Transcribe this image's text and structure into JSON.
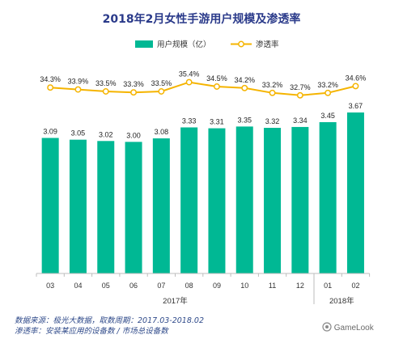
{
  "chart_data": {
    "type": "bar+line",
    "title": "2018年2月女性手游用户规模及渗透率",
    "categories": [
      "03",
      "04",
      "05",
      "06",
      "07",
      "08",
      "09",
      "10",
      "11",
      "12",
      "01",
      "02"
    ],
    "year_labels": [
      {
        "label": "2017年",
        "start": "03",
        "end": "12"
      },
      {
        "label": "2018年",
        "start": "01",
        "end": "02"
      }
    ],
    "series": [
      {
        "name": "用户规模（亿）",
        "type": "bar",
        "values": [
          3.09,
          3.05,
          3.02,
          3.0,
          3.08,
          3.33,
          3.31,
          3.35,
          3.32,
          3.34,
          3.45,
          3.67
        ],
        "labels": [
          "3.09",
          "3.05",
          "3.02",
          "3.00",
          "3.08",
          "3.33",
          "3.31",
          "3.35",
          "3.32",
          "3.34",
          "3.45",
          "3.67"
        ],
        "color": "#00b894"
      },
      {
        "name": "渗透率",
        "type": "line",
        "values": [
          34.3,
          33.9,
          33.5,
          33.3,
          33.5,
          35.4,
          34.5,
          34.2,
          33.2,
          32.7,
          33.2,
          34.6
        ],
        "labels": [
          "34.3%",
          "33.9%",
          "33.5%",
          "33.3%",
          "33.5%",
          "35.4%",
          "34.5%",
          "34.2%",
          "33.2%",
          "32.7%",
          "33.2%",
          "34.6%"
        ],
        "color": "#f5b400"
      }
    ],
    "legend_position": "top",
    "grid": false
  },
  "colors": {
    "title": "#2a3a8a",
    "bar": "#00b894",
    "line": "#f5b400",
    "note": "#2f4a8a"
  },
  "notes": {
    "source": "数据来源：极光大数据，取数周期：2017.03-2018.02",
    "definition": "渗透率：安装某应用的设备数 / 市场总设备数"
  },
  "brand": "GameLook",
  "brand_icon": "gamelook-logo-icon"
}
